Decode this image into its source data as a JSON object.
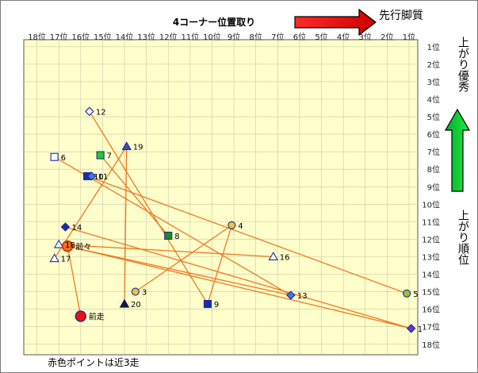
{
  "chart_data": {
    "type": "scatter",
    "title": "4コーナー位置取り",
    "top_right_label": "先行脚質",
    "right_top_label": "上がり優秀",
    "right_bottom_label": "上がり順位",
    "footnote": "赤色ポイントは近3走",
    "x_ticks": [
      "18位",
      "17位",
      "16位",
      "15位",
      "14位",
      "13位",
      "12位",
      "11位",
      "10位",
      "9位",
      "8位",
      "7位",
      "6位",
      "5位",
      "4位",
      "3位",
      "2位",
      "1位"
    ],
    "y_ticks": [
      "1位",
      "2位",
      "3位",
      "4位",
      "5位",
      "6位",
      "7位",
      "8位",
      "9位",
      "10位",
      "11位",
      "12位",
      "13位",
      "14位",
      "15位",
      "16位",
      "17位",
      "18位"
    ],
    "x_axis": {
      "quantity": "4コーナー通過順位",
      "range": [
        18.6,
        0.6
      ],
      "reversed": true
    },
    "y_axis": {
      "quantity": "上がり順位",
      "range": [
        0.6,
        18.6
      ],
      "reversed": true
    },
    "grid": true,
    "colors": {
      "plot_bg": "#ffffcc",
      "grid": "#c8c8a0",
      "line": "#f07820",
      "red_arrow": "#e00000",
      "green_arrow": "#00cc33"
    },
    "points": [
      {
        "label": "12",
        "x": 15.6,
        "y": 4.7,
        "shape": "diamond",
        "fill": "#ffffff",
        "stroke": "#1a2ea0"
      },
      {
        "label": "19",
        "x": 13.9,
        "y": 6.7,
        "shape": "triangle",
        "fill": "#3a50b0",
        "stroke": "#1a2ea0"
      },
      {
        "label": "6",
        "x": 17.2,
        "y": 7.3,
        "shape": "square",
        "fill": "#ffffff",
        "stroke": "#1a2ea0"
      },
      {
        "label": "7",
        "x": 15.1,
        "y": 7.2,
        "shape": "square",
        "fill": "#22cc22",
        "stroke": "#1a2ea0"
      },
      {
        "label": "10",
        "x": 15.7,
        "y": 8.4,
        "shape": "square",
        "fill": "#1a2ea0",
        "stroke": "#1a2ea0"
      },
      {
        "label": "11",
        "x": 15.5,
        "y": 8.4,
        "shape": "diamond",
        "fill": "#3a7ae0",
        "stroke": "#1a2ea0"
      },
      {
        "label": "14",
        "x": 16.7,
        "y": 11.3,
        "shape": "diamond",
        "fill": "#1a2ea0",
        "stroke": "#1a2ea0"
      },
      {
        "label": "4",
        "x": 9.1,
        "y": 11.2,
        "shape": "circle",
        "fill": "#f0c040",
        "stroke": "#1a2ea0"
      },
      {
        "label": "8",
        "x": 12.0,
        "y": 11.8,
        "shape": "square",
        "fill": "#228822",
        "stroke": "#1a2ea0"
      },
      {
        "label": "18",
        "x": 17.0,
        "y": 12.3,
        "shape": "triangle",
        "fill": "#ffffff",
        "stroke": "#1a2ea0"
      },
      {
        "label": "前々",
        "x": 16.6,
        "y": 12.4,
        "shape": "circle",
        "fill": "#f07020",
        "stroke": "#cc2200"
      },
      {
        "label": "17",
        "x": 17.2,
        "y": 13.1,
        "shape": "triangle",
        "fill": "#ffffff",
        "stroke": "#1a2ea0"
      },
      {
        "label": "16",
        "x": 7.2,
        "y": 13.0,
        "shape": "triangle",
        "fill": "#ffffff",
        "stroke": "#1a2ea0"
      },
      {
        "label": "3",
        "x": 13.5,
        "y": 15.0,
        "shape": "circle",
        "fill": "#f0c040",
        "stroke": "#1a2ea0"
      },
      {
        "label": "13",
        "x": 6.4,
        "y": 15.2,
        "shape": "diamond",
        "fill": "#3a7ae0",
        "stroke": "#1a2ea0"
      },
      {
        "label": "5",
        "x": 1.1,
        "y": 15.1,
        "shape": "circle",
        "fill": "#a0c030",
        "stroke": "#1a2ea0"
      },
      {
        "label": "20",
        "x": 14.0,
        "y": 15.7,
        "shape": "triangle",
        "fill": "#101848",
        "stroke": "#101848"
      },
      {
        "label": "9",
        "x": 10.2,
        "y": 15.7,
        "shape": "square",
        "fill": "#1a2ea0",
        "stroke": "#1a2ea0"
      },
      {
        "label": "前走",
        "x": 16.0,
        "y": 16.4,
        "shape": "circle",
        "fill": "#ee1111",
        "stroke": "#1a2ea0"
      },
      {
        "label": "1",
        "x": 0.9,
        "y": 17.1,
        "shape": "diamond",
        "fill": "#6633cc",
        "stroke": "#1a2ea0"
      }
    ],
    "connections": [
      [
        "12",
        "9"
      ],
      [
        "19",
        "20"
      ],
      [
        "19",
        "17"
      ],
      [
        "6",
        "13"
      ],
      [
        "7",
        "8"
      ],
      [
        "10",
        "5"
      ],
      [
        "14",
        "1"
      ],
      [
        "3",
        "4"
      ],
      [
        "18",
        "16"
      ],
      [
        "18",
        "13"
      ],
      [
        "前々",
        "1"
      ],
      [
        "前々",
        "前走"
      ],
      [
        "9",
        "4"
      ]
    ]
  }
}
